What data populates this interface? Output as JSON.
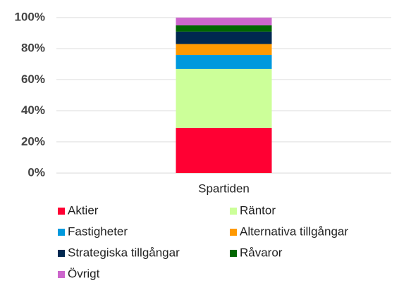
{
  "chart_data": {
    "type": "stacked_bar",
    "categories": [
      "Spartiden"
    ],
    "series": [
      {
        "name": "Aktier",
        "color": "#ff0033",
        "values": [
          29
        ]
      },
      {
        "name": "Räntor",
        "color": "#ccff99",
        "values": [
          38
        ]
      },
      {
        "name": "Fastigheter",
        "color": "#0099dd",
        "values": [
          9
        ]
      },
      {
        "name": "Alternativa tillgångar",
        "color": "#ff9900",
        "values": [
          7
        ]
      },
      {
        "name": "Strategiska tillgångar",
        "color": "#002850",
        "values": [
          8
        ]
      },
      {
        "name": "Råvaror",
        "color": "#006600",
        "values": [
          4
        ]
      },
      {
        "name": "Övrigt",
        "color": "#cc66cc",
        "values": [
          5
        ]
      }
    ],
    "ylim": [
      0,
      100
    ],
    "yticks": [
      {
        "value": 0,
        "label": "0%"
      },
      {
        "value": 20,
        "label": "20%"
      },
      {
        "value": 40,
        "label": "40%"
      },
      {
        "value": 60,
        "label": "60%"
      },
      {
        "value": 80,
        "label": "80%"
      },
      {
        "value": 100,
        "label": "100%"
      }
    ],
    "grid": true
  }
}
